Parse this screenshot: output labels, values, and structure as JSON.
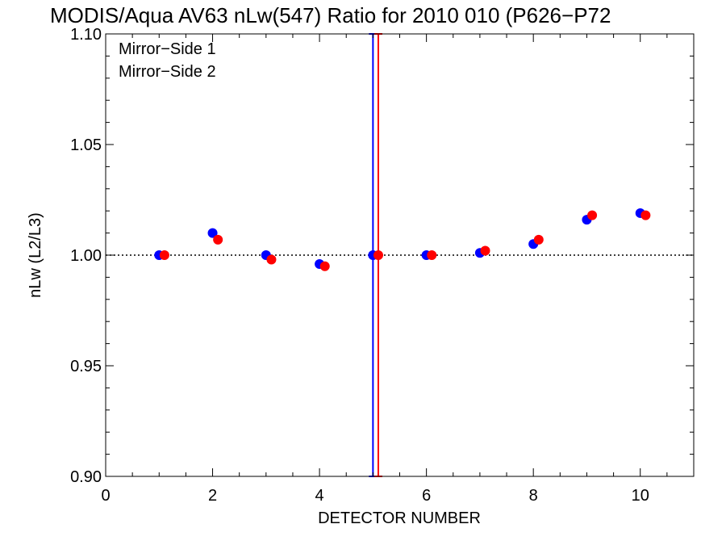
{
  "chart_data": {
    "type": "scatter",
    "title": "MODIS/Aqua AV63 nLw(547) Ratio for 2010 010 (P626−P72",
    "xlabel": "DETECTOR NUMBER",
    "ylabel": "nLw (L2/L3)",
    "xlim": [
      0,
      11
    ],
    "ylim": [
      0.9,
      1.1
    ],
    "x_ticks": [
      0,
      2,
      4,
      6,
      8,
      10
    ],
    "x_tick_labels": [
      "0",
      "2",
      "4",
      "6",
      "8",
      "10"
    ],
    "y_ticks": [
      0.9,
      0.95,
      1.0,
      1.05,
      1.1
    ],
    "y_tick_labels": [
      "0.90",
      "0.95",
      "1.00",
      "1.05",
      "1.10"
    ],
    "reference_line": {
      "y": 1.0,
      "style": "dotted"
    },
    "legend_position": "top-left",
    "series": [
      {
        "name": "Mirror−Side 1",
        "color": "#0000ff",
        "x": [
          1,
          2,
          3,
          4,
          5,
          6,
          7,
          8,
          9,
          10
        ],
        "y": [
          1.0,
          1.01,
          1.0,
          0.996,
          1.0,
          1.0,
          1.001,
          1.005,
          1.016,
          1.019
        ],
        "error_bars": [
          {
            "x": 5,
            "low": 0.9,
            "high": 1.1
          }
        ]
      },
      {
        "name": "Mirror−Side 2",
        "color": "#ff0000",
        "x": [
          1.1,
          2.1,
          3.1,
          4.1,
          5.1,
          6.1,
          7.1,
          8.1,
          9.1,
          10.1
        ],
        "y": [
          1.0,
          1.007,
          0.998,
          0.995,
          1.0,
          1.0,
          1.002,
          1.007,
          1.018,
          1.018
        ],
        "error_bars": [
          {
            "x": 5.1,
            "low": 0.9,
            "high": 1.1
          }
        ]
      }
    ]
  }
}
